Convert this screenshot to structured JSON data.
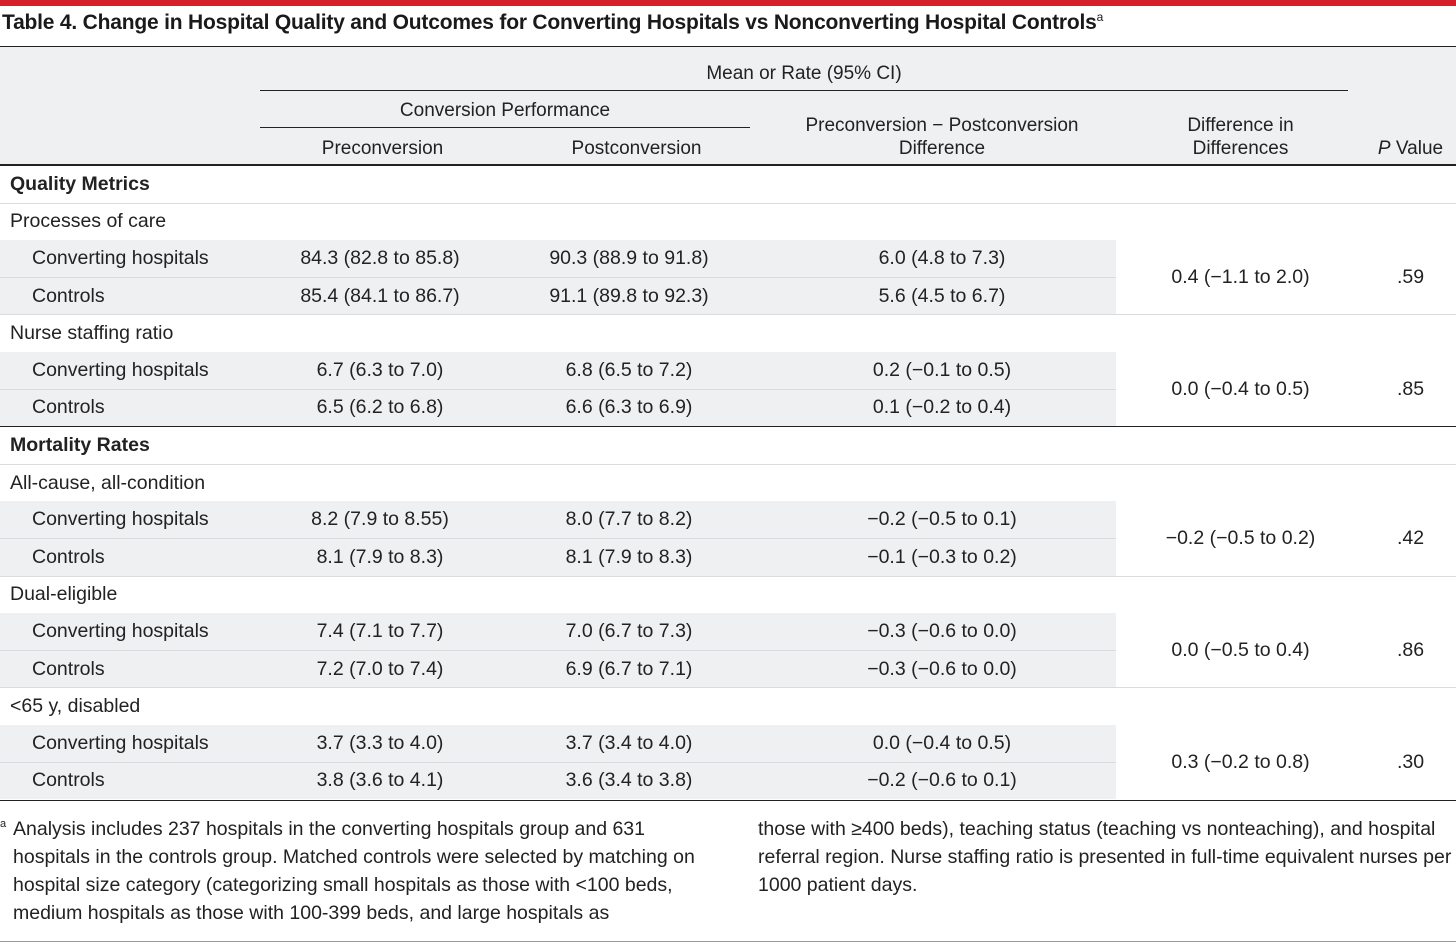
{
  "title": "Table 4. Change in Hospital Quality and Outcomes for Converting Hospitals vs Nonconverting Hospital Controls",
  "title_note": "a",
  "header": {
    "mean_rate": "Mean or Rate (95% CI)",
    "conversion_performance": "Conversion Performance",
    "preconversion": "Preconversion",
    "postconversion": "Postconversion",
    "difference_line1": "Preconversion − Postconversion",
    "difference_line2": "Difference",
    "did_line1": "Difference in",
    "did_line2": "Differences",
    "p_italic": "P",
    "p_rest": " Value"
  },
  "sections": [
    {
      "name": "Quality Metrics",
      "groups": [
        {
          "name": "Processes of care",
          "rows": [
            {
              "label": "Converting hospitals",
              "pre": "84.3 (82.8 to 85.8)",
              "post": "90.3 (88.9 to 91.8)",
              "diff": "6.0 (4.8 to 7.3)"
            },
            {
              "label": "Controls",
              "pre": "85.4 (84.1 to 86.7)",
              "post": "91.1 (89.8 to 92.3)",
              "diff": "5.6 (4.5 to 6.7)"
            }
          ],
          "did": "0.4 (−1.1 to 2.0)",
          "p": ".59"
        },
        {
          "name": "Nurse staffing ratio",
          "rows": [
            {
              "label": "Converting hospitals",
              "pre": "6.7 (6.3 to 7.0)",
              "post": "6.8 (6.5 to 7.2)",
              "diff": "0.2 (−0.1 to 0.5)"
            },
            {
              "label": "Controls",
              "pre": "6.5 (6.2 to 6.8)",
              "post": "6.6 (6.3 to 6.9)",
              "diff": "0.1 (−0.2 to 0.4)"
            }
          ],
          "did": "0.0 (−0.4 to 0.5)",
          "p": ".85"
        }
      ]
    },
    {
      "name": "Mortality Rates",
      "groups": [
        {
          "name": "All-cause, all-condition",
          "rows": [
            {
              "label": "Converting hospitals",
              "pre": "8.2 (7.9 to 8.55)",
              "post": "8.0 (7.7 to 8.2)",
              "diff": "−0.2 (−0.5 to 0.1)"
            },
            {
              "label": "Controls",
              "pre": "8.1 (7.9 to 8.3)",
              "post": "8.1 (7.9 to 8.3)",
              "diff": "−0.1 (−0.3 to 0.2)"
            }
          ],
          "did": "−0.2 (−0.5 to 0.2)",
          "p": ".42"
        },
        {
          "name": "Dual-eligible",
          "rows": [
            {
              "label": "Converting hospitals",
              "pre": "7.4 (7.1 to 7.7)",
              "post": "7.0 (6.7 to 7.3)",
              "diff": "−0.3 (−0.6 to 0.0)"
            },
            {
              "label": "Controls",
              "pre": "7.2 (7.0 to 7.4)",
              "post": "6.9 (6.7 to 7.1)",
              "diff": "−0.3 (−0.6 to 0.0)"
            }
          ],
          "did": "0.0 (−0.5 to 0.4)",
          "p": ".86"
        },
        {
          "name": "<65 y, disabled",
          "rows": [
            {
              "label": "Converting hospitals",
              "pre": "3.7 (3.3 to 4.0)",
              "post": "3.7 (3.4 to 4.0)",
              "diff": "0.0 (−0.4 to 0.5)"
            },
            {
              "label": "Controls",
              "pre": "3.8 (3.6 to 4.1)",
              "post": "3.6 (3.4 to 3.8)",
              "diff": "−0.2 (−0.6 to 0.1)"
            }
          ],
          "did": "0.3 (−0.2 to 0.8)",
          "p": ".30"
        }
      ]
    }
  ],
  "footnote": {
    "marker": "a",
    "col1": "Analysis includes 237 hospitals in the converting hospitals group and 631 hospitals in the controls group. Matched controls were selected by matching on hospital size category (categorizing small hospitals as those with <100 beds, medium hospitals as those with 100-399 beds, and large hospitals as",
    "col2": "those with ≥400 beds), teaching status (teaching vs nonteaching), and hospital referral region. Nurse staffing ratio is presented in full-time equivalent nurses per 1000 patient days."
  },
  "colors": {
    "accent_rule": "#d4202a",
    "header_shade": "#eef0f2",
    "text": "#222222"
  }
}
